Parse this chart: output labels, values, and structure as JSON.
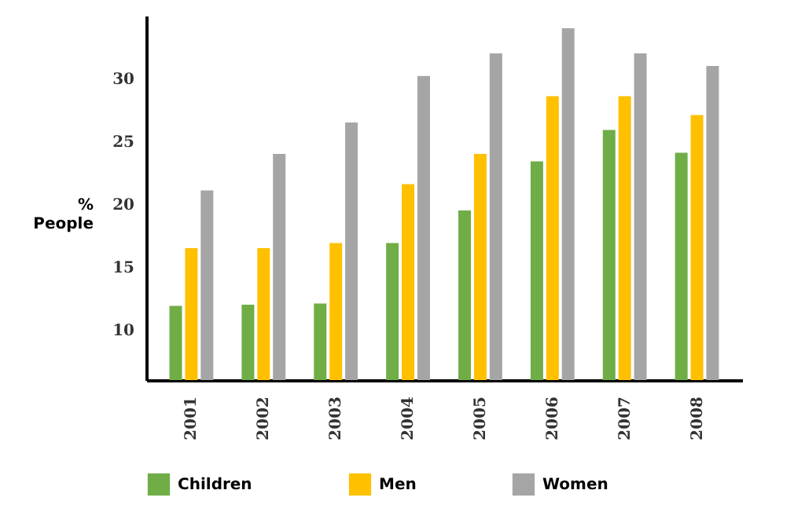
{
  "chart_data": {
    "type": "bar",
    "ylabel": "% People",
    "categories": [
      "2001",
      "2002",
      "2003",
      "2004",
      "2005",
      "2006",
      "2007",
      "2008"
    ],
    "series": [
      {
        "name": "Children",
        "color": "#70ad47",
        "values": [
          11.9,
          12,
          12.1,
          16.9,
          19.5,
          23.4,
          25.9,
          24.1
        ]
      },
      {
        "name": "Men",
        "color": "#ffc000",
        "values": [
          16.5,
          16.5,
          16.9,
          21.6,
          24,
          28.6,
          28.6,
          27.1
        ]
      },
      {
        "name": "Women",
        "color": "#a5a5a5",
        "values": [
          21.1,
          24,
          26.5,
          30.2,
          32,
          34,
          32,
          31
        ]
      }
    ],
    "ylim": [
      6,
      35
    ],
    "yticks": [
      10,
      15,
      20,
      25,
      30
    ],
    "grid": false,
    "legend": "bottom"
  }
}
